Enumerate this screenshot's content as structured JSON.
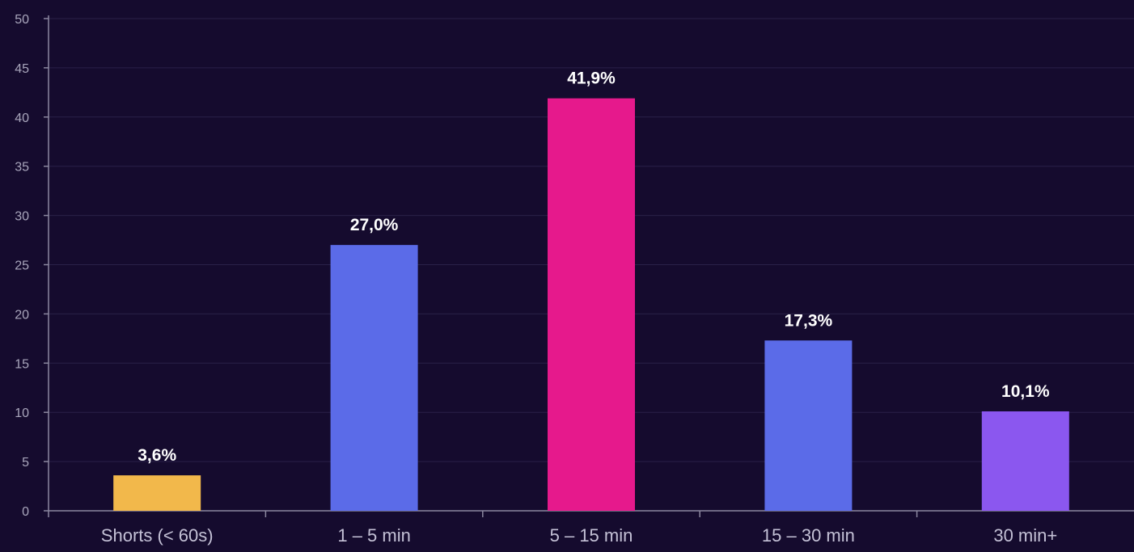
{
  "chart_data": {
    "type": "bar",
    "title": "",
    "xlabel": "",
    "ylabel": "",
    "categories": [
      "Shorts (< 60s)",
      "1 – 5 min",
      "5 – 15 min",
      "15 – 30 min",
      "30 min+"
    ],
    "values": [
      3.6,
      27.0,
      41.9,
      17.3,
      10.1
    ],
    "data_labels": [
      "3,6%",
      "27,0%",
      "41,9%",
      "17,3%",
      "10,1%"
    ],
    "bar_colors": [
      "#f2b84b",
      "#5b6be8",
      "#e6198c",
      "#5b6be8",
      "#8b57ef"
    ],
    "ylim": [
      0,
      50
    ],
    "yticks": [
      0,
      5,
      10,
      15,
      20,
      25,
      30,
      35,
      40,
      45,
      50
    ],
    "grid": true,
    "legend": "none"
  },
  "colors": {
    "background": "#150b2e",
    "grid": "#2a2148",
    "axis": "#8c88a0"
  }
}
